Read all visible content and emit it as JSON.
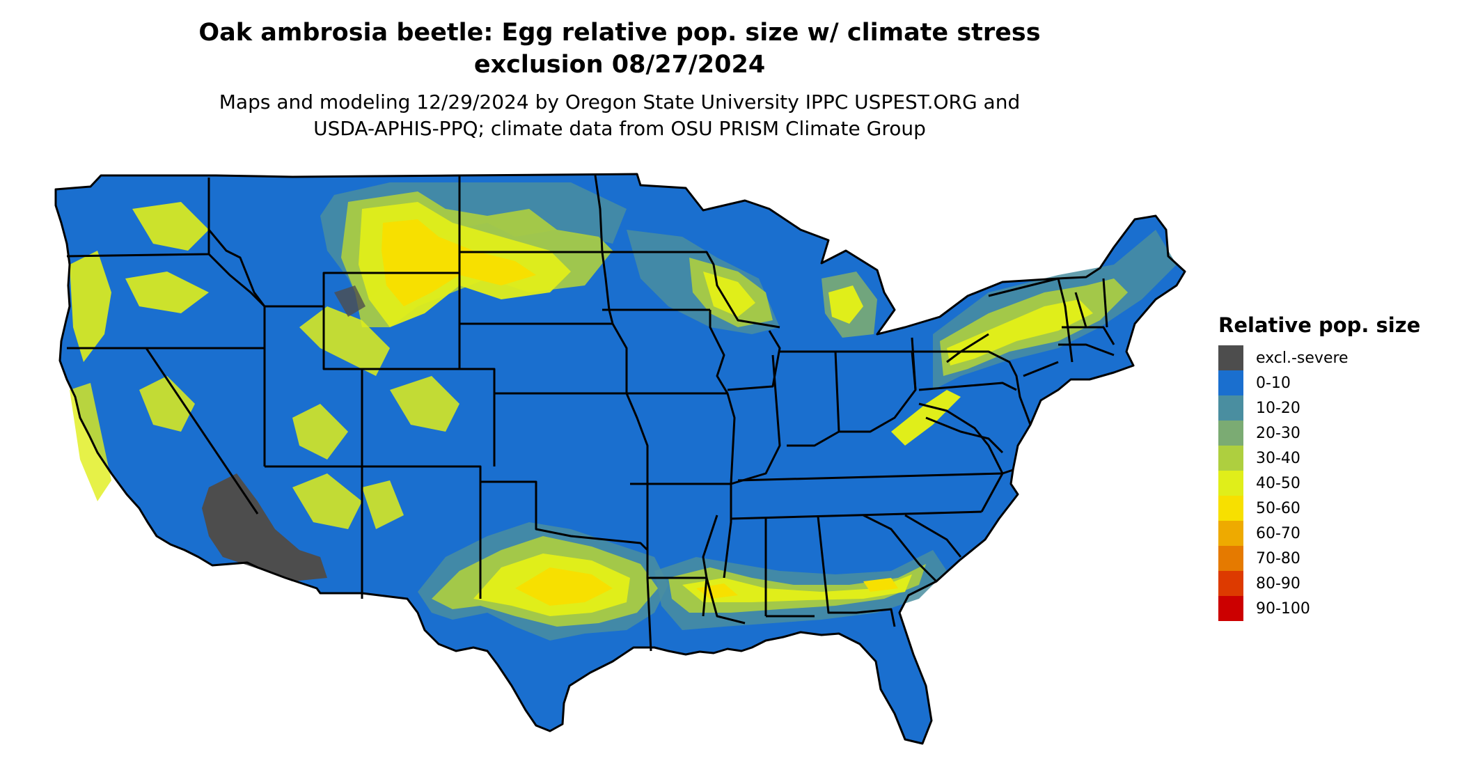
{
  "title_line1": "Oak ambrosia beetle: Egg relative pop. size w/ climate stress",
  "title_line2": "exclusion 08/27/2024",
  "subtitle_line1": "Maps and modeling 12/29/2024 by Oregon State University IPPC USPEST.ORG and",
  "subtitle_line2": "USDA-APHIS-PPQ; climate data from OSU PRISM Climate Group",
  "legend": {
    "title": "Relative pop. size",
    "items": [
      {
        "label": "excl.-severe",
        "color": "#4d4d4d"
      },
      {
        "label": "0-10",
        "color": "#1a6fcf"
      },
      {
        "label": "10-20",
        "color": "#4a8ea0"
      },
      {
        "label": "20-30",
        "color": "#7bab73"
      },
      {
        "label": "30-40",
        "color": "#aecf3f"
      },
      {
        "label": "40-50",
        "color": "#e0ee1a"
      },
      {
        "label": "50-60",
        "color": "#f7e000"
      },
      {
        "label": "60-70",
        "color": "#eeaa00"
      },
      {
        "label": "70-80",
        "color": "#e57a00"
      },
      {
        "label": "80-90",
        "color": "#dd3a00"
      },
      {
        "label": "90-100",
        "color": "#cc0000"
      }
    ]
  },
  "map_colors": {
    "base": "#1a6fcf",
    "excluded": "#4d4d4d",
    "low": "#4a8ea0",
    "mid": "#aecf3f",
    "high": "#e0ee1a",
    "peak": "#f7e000",
    "border": "#000000"
  }
}
